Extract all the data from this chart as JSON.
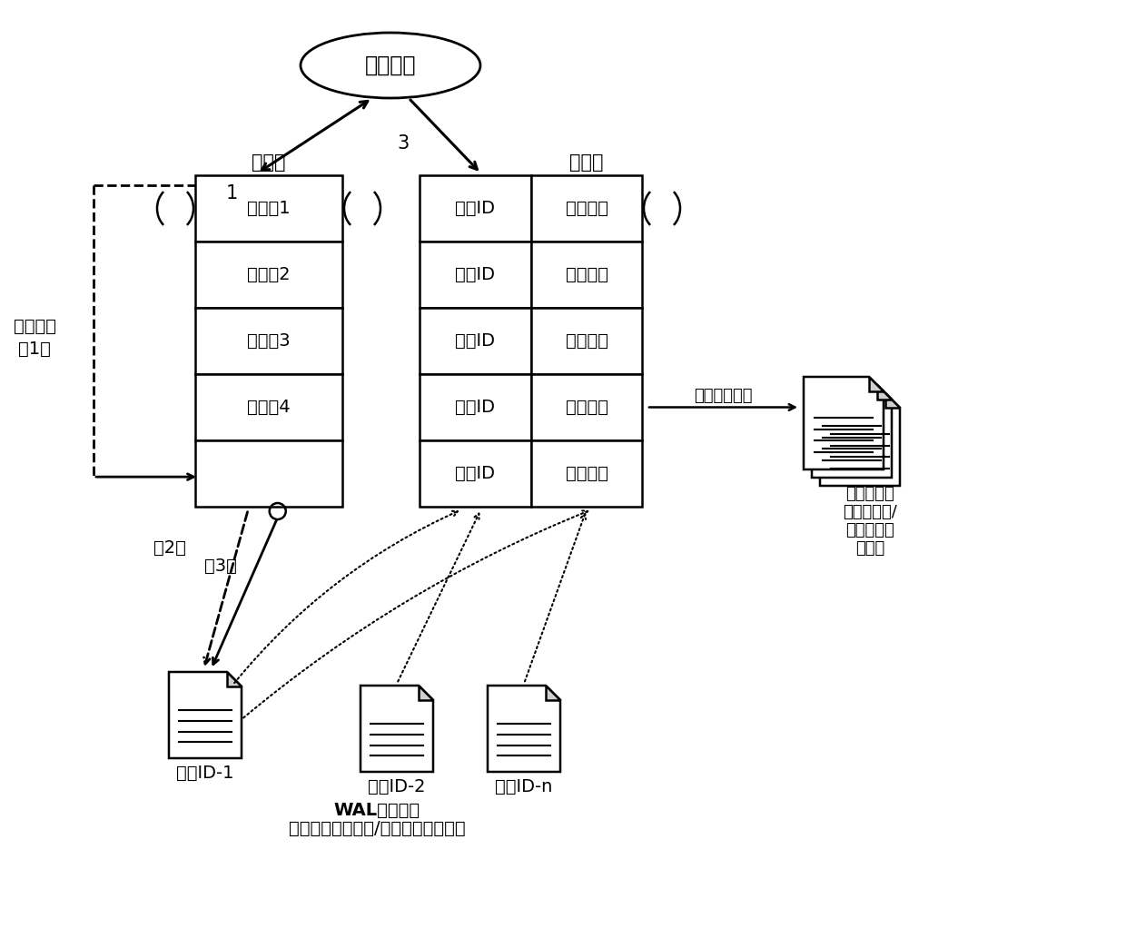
{
  "bg_color": "#ffffff",
  "ellipse_label": "计算单元",
  "main_queue_label": "主队列",
  "slave_queue_label": "从队列",
  "main_rows": [
    "数据体1",
    "数据体2",
    "数据体3",
    "数据体4",
    ""
  ],
  "slave_rows_col1": [
    "文件ID",
    "文件ID",
    "文件ID",
    "文件ID",
    "文件ID"
  ],
  "slave_rows_col2": [
    "偏移地址",
    "偏移地址",
    "偏移地址",
    "偏移地址",
    "偏移地址"
  ],
  "fail_label_line1": "处理失败",
  "fail_label_line2": "（1）",
  "checkpoint_text": "定时做检查点",
  "checkpoint_file_line1": "检查点文件",
  "checkpoint_file_line2": "（本地存储/",
  "checkpoint_file_line3": "分布式文件",
  "checkpoint_file_line4": "存储）",
  "wal_line1": "WAL日志文件",
  "wal_line2": "（本地多目录存储/分布式文件存储）",
  "file_labels": [
    "文件ID-1",
    "文件ID-2",
    "文件ID-n"
  ],
  "num1": "1",
  "num2": "（2）",
  "num3": "（3）",
  "num3_top": "3"
}
